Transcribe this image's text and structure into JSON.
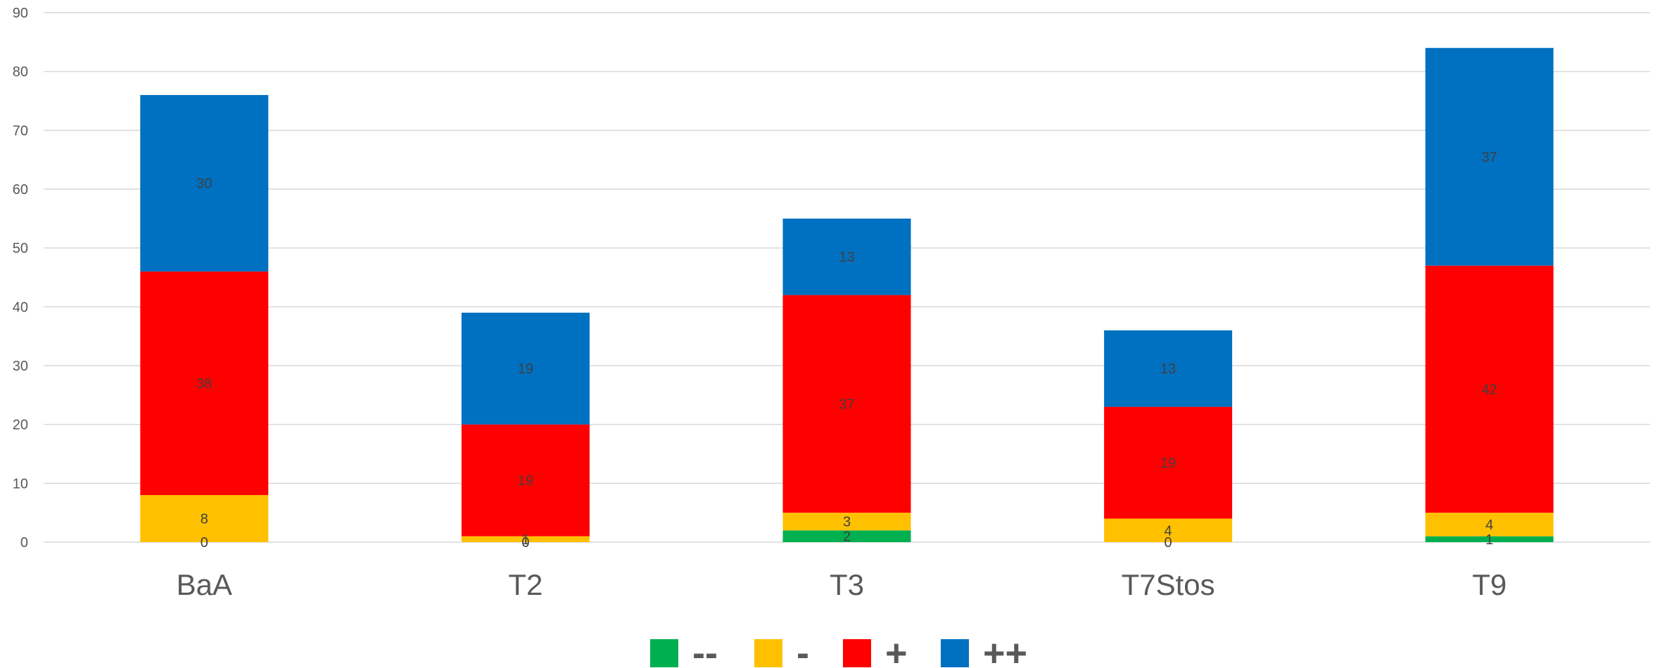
{
  "chart_data": {
    "type": "bar",
    "stacked": true,
    "categories": [
      "BaA",
      "T2",
      "T3",
      "T7Stos",
      "T9"
    ],
    "series": [
      {
        "name": "--",
        "color": "#00b050",
        "values": [
          0,
          0,
          2,
          0,
          1
        ]
      },
      {
        "name": "-",
        "color": "#ffc000",
        "values": [
          8,
          1,
          3,
          4,
          4
        ]
      },
      {
        "name": "+",
        "color": "#ff0000",
        "values": [
          38,
          19,
          37,
          19,
          42
        ]
      },
      {
        "name": "++",
        "color": "#0070c0",
        "values": [
          30,
          19,
          13,
          13,
          37
        ]
      }
    ],
    "ylim": [
      0,
      90
    ],
    "yticks": [
      0,
      10,
      20,
      30,
      40,
      50,
      60,
      70,
      80,
      90
    ],
    "grid": true,
    "legend": "bottom-center"
  }
}
